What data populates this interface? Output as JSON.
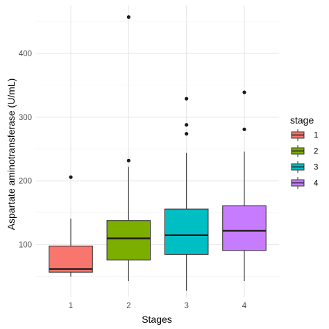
{
  "chart_data": {
    "type": "boxplot",
    "xlabel": "Stages",
    "ylabel": "Aspartate aminotransferase (U/mL)",
    "categories": [
      "1",
      "2",
      "3",
      "4"
    ],
    "ylim": [
      18,
      475
    ],
    "yticks": [
      100,
      200,
      300,
      400
    ],
    "grid": true,
    "legend": {
      "title": "stage",
      "placement": "right",
      "items": [
        {
          "label": "1",
          "color": "#F8766D"
        },
        {
          "label": "2",
          "color": "#7CAE00"
        },
        {
          "label": "3",
          "color": "#00BFC4"
        },
        {
          "label": "4",
          "color": "#C77CFF"
        }
      ]
    },
    "series": [
      {
        "category": "1",
        "color": "#F8766D",
        "whisker_low": 50,
        "q1": 57,
        "median": 62,
        "q3": 98,
        "whisker_high": 141,
        "outliers": [
          206
        ]
      },
      {
        "category": "2",
        "color": "#7CAE00",
        "whisker_low": 43,
        "q1": 76,
        "median": 110,
        "q3": 138,
        "whisker_high": 222,
        "outliers": [
          232,
          457
        ]
      },
      {
        "category": "3",
        "color": "#00BFC4",
        "whisker_low": 28,
        "q1": 85,
        "median": 115,
        "q3": 156,
        "whisker_high": 244,
        "outliers": [
          274,
          288,
          329
        ]
      },
      {
        "category": "4",
        "color": "#C77CFF",
        "whisker_low": 43,
        "q1": 91,
        "median": 122,
        "q3": 161,
        "whisker_high": 246,
        "outliers": [
          281,
          339
        ]
      }
    ]
  }
}
